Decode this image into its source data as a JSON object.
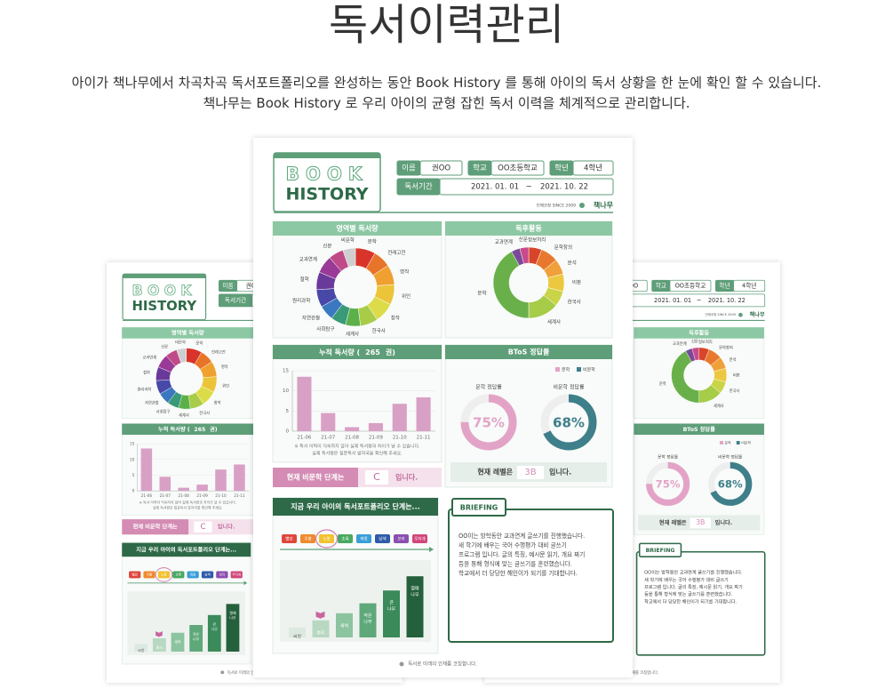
{
  "header": {
    "title": "독서이력관리",
    "description": [
      "아이가 책나무에서 차곡차곡 독서포트폴리오를 완성하는 동안 Book History 를 통해 아이의 독서 상황을 한 눈에 확인 할 수 있습니다.",
      "책나무는 Book History 로 우리 아이의 균형 잡힌 독서 이력을 체계적으로 관리합니다."
    ]
  },
  "report": {
    "logo": {
      "top": "BOOK",
      "bottom": "HISTORY"
    },
    "info": {
      "name": {
        "label": "이름",
        "value": "권OO"
      },
      "school": {
        "label": "학교",
        "value": "OO초등학교"
      },
      "grade": {
        "label": "학년",
        "value": "4학년"
      },
      "period": {
        "label": "독서기간",
        "start": "2021. 01. 01",
        "separator": "~",
        "end": "2021. 10. 22"
      }
    },
    "brand": {
      "tagline": "인재코칭 SINCE 2009",
      "name": "책나무"
    },
    "genre": {
      "type": "donut",
      "title": "영역별 독서량",
      "segments": [
        {
          "label": "문학",
          "value": 8,
          "color": "#d9342b"
        },
        {
          "label": "전래고전",
          "value": 7,
          "color": "#e8742a"
        },
        {
          "label": "명작",
          "value": 8,
          "color": "#f0a030"
        },
        {
          "label": "위인",
          "value": 8,
          "color": "#ecc43a"
        },
        {
          "label": "창작",
          "value": 8,
          "color": "#dcdc4a"
        },
        {
          "label": "한국사",
          "value": 7,
          "color": "#a8cc48"
        },
        {
          "label": "세계사",
          "value": 6,
          "color": "#5cb04a"
        },
        {
          "label": "사회탐구",
          "value": 6,
          "color": "#3a9a78"
        },
        {
          "label": "자연관찰",
          "value": 6,
          "color": "#3a78c0"
        },
        {
          "label": "원리과학",
          "value": 7,
          "color": "#4848a8"
        },
        {
          "label": "철학",
          "value": 7,
          "color": "#6a3a9a"
        },
        {
          "label": "교과연계",
          "value": 7,
          "color": "#9a3a98"
        },
        {
          "label": "신문",
          "value": 6,
          "color": "#c04a88"
        },
        {
          "label": "비문학",
          "value": 5,
          "color": "#cfcfcf"
        }
      ]
    },
    "activity": {
      "type": "donut",
      "title": "독후활동",
      "segments": [
        {
          "label": "정보처리",
          "value": 6,
          "color": "#d9452a"
        },
        {
          "label": "문학창의",
          "value": 8,
          "color": "#e8782e"
        },
        {
          "label": "분석",
          "value": 7,
          "color": "#f0a03a"
        },
        {
          "label": "비판",
          "value": 8,
          "color": "#ecc840"
        },
        {
          "label": "한국사",
          "value": 7,
          "color": "#cad448"
        },
        {
          "label": "세계사",
          "value": 14,
          "color": "#a6cc48"
        },
        {
          "label": "문학",
          "value": 42,
          "color": "#6ab04a"
        },
        {
          "label": "교과연계",
          "value": 4,
          "color": "#7a4a9a"
        },
        {
          "label": "신문",
          "value": 4,
          "color": "#c84a8a"
        }
      ]
    },
    "accumulated": {
      "type": "bar",
      "title_prefix": "누적 독서량 (",
      "total": 265,
      "title_suffix": "권)",
      "categories": [
        "21-06",
        "21-07",
        "21-08",
        "21-09",
        "21-10",
        "21-11"
      ],
      "values": [
        13.5,
        4.5,
        1,
        2,
        6.8,
        8.4
      ],
      "color": "#d9a0c6",
      "ylim": [
        0,
        15
      ],
      "yticks": [
        0,
        5,
        10,
        15
      ],
      "grid": true,
      "notes": [
        "※ 독서 이력이 익숙하지 않아 실제 독서량과 차이가 날 수 있습니다.",
        "실제 독서량은 질문독서 발자국을 확인해 주세요."
      ]
    },
    "nonfiction_level": {
      "prefix": "현재 비문학 단계는",
      "level": "C",
      "suffix": "입니다."
    },
    "btos": {
      "type": "gauge",
      "title": "BToS 정답률",
      "lim": [
        0,
        100
      ],
      "series": [
        {
          "name": "문학",
          "label": "문학 정답률",
          "value": 75,
          "value_label": "75%",
          "color": "#e3a3c7"
        },
        {
          "name": "비문학",
          "label": "비문학 정답률",
          "value": 68,
          "value_label": "68%",
          "color": "#3e7f8a"
        }
      ],
      "level": {
        "prefix": "현재 레벨은",
        "level": "3B",
        "suffix": "입니다."
      }
    },
    "portfolio": {
      "title": "지금 우리 아이의 독서포트폴리오 단계는...",
      "steps": [
        {
          "label": "빨강",
          "color": "#e0463c"
        },
        {
          "label": "주황",
          "color": "#ef8a2e"
        },
        {
          "label": "노랑",
          "color": "#f2c230",
          "highlight": true
        },
        {
          "label": "초록",
          "color": "#4aa860"
        },
        {
          "label": "파랑",
          "color": "#3a9fd8"
        },
        {
          "label": "남색",
          "color": "#2f5aa8"
        },
        {
          "label": "보라",
          "color": "#8a4fb0"
        },
        {
          "label": "무지개",
          "color": "#d2457a"
        }
      ],
      "lim": [
        0,
        100
      ],
      "stages": [
        {
          "label": [
            "씨앗"
          ],
          "value": 14,
          "color": "#dce9e0"
        },
        {
          "label": [
            "뿌리"
          ],
          "value": 24,
          "color": "#b8d8c2"
        },
        {
          "label": [
            "새싹"
          ],
          "value": 34,
          "color": "#8cc4a0"
        },
        {
          "label": [
            "작은",
            "나무"
          ],
          "value": 48,
          "color": "#5ea87a"
        },
        {
          "label": [
            "큰",
            "나무"
          ],
          "value": 66,
          "color": "#3a8a5a"
        },
        {
          "label": [
            "열매",
            "나무"
          ],
          "value": 86,
          "color": "#24603c"
        }
      ]
    },
    "briefing": {
      "title": "BRIEFING",
      "lines": [
        "OO이는 방학동안 교과연계 글쓰기를 진행했습니다.",
        "새 학기에 배우는 국어 수행평가 대비 글쓰기",
        "프로그램 입니다. 글의 특징, 예시문 읽기, 개요 짜기",
        "등을 통해 형식에 맞는 글쓰기를 훈련했습니다.",
        "학교에서 더 당당한 해인이가 되기를 기대합니다."
      ]
    },
    "footer": "독서로 미래의 인재를 코칭합니다."
  }
}
